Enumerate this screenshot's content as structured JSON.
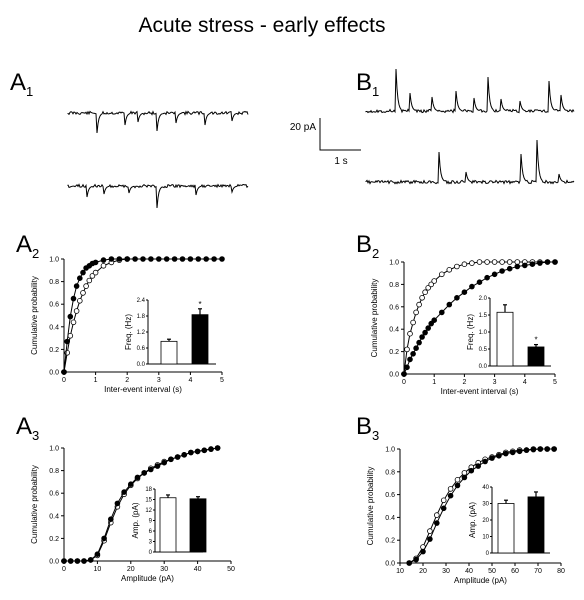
{
  "figure": {
    "title": "Acute stress - early effects",
    "scale_bar": {
      "y_label": "20 pA",
      "x_label": "1 s"
    }
  },
  "panels": {
    "A1": {
      "letter": "A",
      "sub": "1"
    },
    "B1": {
      "letter": "B",
      "sub": "1"
    },
    "A2": {
      "letter": "A",
      "sub": "2"
    },
    "B2": {
      "letter": "B",
      "sub": "2"
    },
    "A3": {
      "letter": "A",
      "sub": "3"
    },
    "B3": {
      "letter": "B",
      "sub": "3"
    }
  },
  "chart_data": [
    {
      "id": "A2",
      "type": "line",
      "xlabel": "Inter-event interval (s)",
      "ylabel": "Cumulative probability",
      "xlim": [
        0,
        5
      ],
      "ylim": [
        0,
        1.0
      ],
      "xticks": [
        "0",
        "1",
        "2",
        "3",
        "4",
        "5"
      ],
      "yticks": [
        "0.0",
        "0.2",
        "0.4",
        "0.6",
        "0.8",
        "1.0"
      ],
      "series": [
        {
          "marker": "filled",
          "x": [
            0.0,
            0.1,
            0.2,
            0.3,
            0.4,
            0.5,
            0.6,
            0.7,
            0.8,
            0.9,
            1.0,
            1.25,
            1.5,
            1.75,
            2.0,
            2.25,
            2.5,
            2.75,
            3.0,
            3.25,
            3.5,
            3.75,
            4.0,
            4.25,
            4.5,
            4.75,
            5.0
          ],
          "y": [
            0.0,
            0.27,
            0.49,
            0.65,
            0.76,
            0.83,
            0.88,
            0.92,
            0.94,
            0.96,
            0.97,
            0.99,
            1.0,
            1.0,
            1.0,
            1.0,
            1.0,
            1.0,
            1.0,
            1.0,
            1.0,
            1.0,
            1.0,
            1.0,
            1.0,
            1.0,
            1.0
          ]
        },
        {
          "marker": "open",
          "x": [
            0.0,
            0.1,
            0.2,
            0.3,
            0.4,
            0.5,
            0.6,
            0.7,
            0.8,
            0.9,
            1.0,
            1.25,
            1.5,
            1.75,
            2.0
          ],
          "y": [
            0.0,
            0.17,
            0.32,
            0.44,
            0.54,
            0.63,
            0.7,
            0.76,
            0.81,
            0.85,
            0.88,
            0.94,
            0.97,
            0.99,
            1.0
          ]
        }
      ],
      "inset": {
        "type": "bar",
        "ylabel": "Freq. (Hz)",
        "ylim": [
          0,
          2.4
        ],
        "yticks": [
          "0.0",
          "0.6",
          "1.2",
          "1.8",
          "2.4"
        ],
        "values": [
          0.85,
          1.85
        ],
        "errors": [
          0.08,
          0.22
        ],
        "fills": [
          "open",
          "filled"
        ],
        "annotations": [
          "",
          "*"
        ]
      }
    },
    {
      "id": "B2",
      "type": "line",
      "xlabel": "Inter-event interval (s)",
      "ylabel": "Cumulative probability",
      "xlim": [
        0,
        5
      ],
      "ylim": [
        0,
        1.0
      ],
      "xticks": [
        "0",
        "1",
        "2",
        "3",
        "4",
        "5"
      ],
      "yticks": [
        "0.0",
        "0.2",
        "0.4",
        "0.6",
        "0.8",
        "1.0"
      ],
      "series": [
        {
          "marker": "open",
          "x": [
            0.0,
            0.1,
            0.2,
            0.3,
            0.4,
            0.5,
            0.6,
            0.7,
            0.8,
            0.9,
            1.0,
            1.25,
            1.5,
            1.75,
            2.0,
            2.25,
            2.5,
            2.75,
            3.0,
            3.25,
            3.5,
            3.75,
            4.0,
            4.25,
            4.5,
            4.75,
            5.0
          ],
          "y": [
            0.0,
            0.22,
            0.36,
            0.46,
            0.55,
            0.62,
            0.68,
            0.73,
            0.77,
            0.8,
            0.83,
            0.89,
            0.93,
            0.96,
            0.98,
            0.99,
            1.0,
            1.0,
            1.0,
            1.0,
            1.0,
            1.0,
            1.0,
            1.0,
            1.0,
            1.0,
            1.0
          ]
        },
        {
          "marker": "filled",
          "x": [
            0.0,
            0.1,
            0.2,
            0.3,
            0.4,
            0.5,
            0.6,
            0.7,
            0.8,
            0.9,
            1.0,
            1.25,
            1.5,
            1.75,
            2.0,
            2.25,
            2.5,
            2.75,
            3.0,
            3.25,
            3.5,
            3.75,
            4.0,
            4.25,
            4.5,
            4.75,
            5.0
          ],
          "y": [
            0.0,
            0.06,
            0.13,
            0.18,
            0.23,
            0.28,
            0.33,
            0.37,
            0.41,
            0.45,
            0.48,
            0.55,
            0.62,
            0.68,
            0.73,
            0.78,
            0.82,
            0.86,
            0.89,
            0.92,
            0.94,
            0.96,
            0.97,
            0.98,
            0.99,
            1.0,
            1.0
          ]
        }
      ],
      "inset": {
        "type": "bar",
        "ylabel": "Freq. (Hz)",
        "ylim": [
          0,
          2.0
        ],
        "yticks": [
          "0.0",
          "0.5",
          "1.0",
          "1.5",
          "2.0"
        ],
        "values": [
          1.58,
          0.56
        ],
        "errors": [
          0.22,
          0.07
        ],
        "fills": [
          "open",
          "filled"
        ],
        "annotations": [
          "",
          "*"
        ]
      }
    },
    {
      "id": "A3",
      "type": "line",
      "xlabel": "Amplitude (pA)",
      "ylabel": "Cumulative probability",
      "xlim": [
        0,
        50
      ],
      "ylim": [
        0,
        1.0
      ],
      "xticks": [
        "0",
        "10",
        "20",
        "30",
        "40",
        "50"
      ],
      "yticks": [
        "0.0",
        "0.2",
        "0.4",
        "0.6",
        "0.8",
        "1.0"
      ],
      "series": [
        {
          "marker": "filled",
          "x": [
            0,
            2,
            4,
            6,
            8,
            10,
            12,
            14,
            16,
            18,
            20,
            22,
            24,
            26,
            28,
            30,
            32,
            34,
            36,
            38,
            40,
            42,
            44,
            46
          ],
          "y": [
            0.0,
            0.0,
            0.0,
            0.0,
            0.01,
            0.06,
            0.2,
            0.37,
            0.51,
            0.61,
            0.68,
            0.74,
            0.78,
            0.81,
            0.84,
            0.87,
            0.9,
            0.92,
            0.94,
            0.96,
            0.97,
            0.98,
            0.99,
            1.0
          ]
        },
        {
          "marker": "open",
          "x": [
            0,
            2,
            4,
            6,
            8,
            10,
            12,
            14,
            16,
            18,
            20,
            22,
            24,
            26,
            28,
            30,
            32,
            34,
            36,
            38,
            40,
            42,
            44,
            46
          ],
          "y": [
            0.0,
            0.0,
            0.0,
            0.0,
            0.01,
            0.05,
            0.18,
            0.34,
            0.48,
            0.59,
            0.67,
            0.73,
            0.78,
            0.82,
            0.85,
            0.88,
            0.9,
            0.92,
            0.94,
            0.96,
            0.97,
            0.98,
            0.99,
            1.0
          ]
        }
      ],
      "inset": {
        "type": "bar",
        "ylabel": "Amp. (pA)",
        "ylim": [
          0,
          18
        ],
        "yticks": [
          "0",
          "3",
          "6",
          "9",
          "12",
          "15",
          "18"
        ],
        "values": [
          15.5,
          15.2
        ],
        "errors": [
          0.8,
          0.6
        ],
        "fills": [
          "open",
          "filled"
        ],
        "annotations": [
          "",
          ""
        ]
      }
    },
    {
      "id": "B3",
      "type": "line",
      "xlabel": "Amplitude (pA)",
      "ylabel": "Cumulative probability",
      "xlim": [
        10,
        80
      ],
      "ylim": [
        0,
        1.0
      ],
      "xticks": [
        "10",
        "20",
        "30",
        "40",
        "50",
        "60",
        "70",
        "80"
      ],
      "yticks": [
        "0.0",
        "0.2",
        "0.4",
        "0.6",
        "0.8",
        "1.0"
      ],
      "series": [
        {
          "marker": "filled",
          "x": [
            14,
            17,
            20,
            23,
            26,
            29,
            32,
            35,
            38,
            41,
            44,
            47,
            50,
            53,
            56,
            59,
            62,
            65,
            68,
            71,
            74,
            77
          ],
          "y": [
            0.0,
            0.03,
            0.1,
            0.21,
            0.35,
            0.48,
            0.59,
            0.68,
            0.75,
            0.81,
            0.85,
            0.89,
            0.92,
            0.94,
            0.96,
            0.97,
            0.98,
            0.99,
            0.995,
            1.0,
            1.0,
            1.0
          ]
        },
        {
          "marker": "open",
          "x": [
            14,
            17,
            20,
            23,
            26,
            29,
            32,
            35,
            38,
            41,
            44,
            47,
            50,
            53,
            56,
            59,
            62,
            65,
            68,
            71,
            74,
            77
          ],
          "y": [
            0.0,
            0.04,
            0.14,
            0.28,
            0.42,
            0.55,
            0.65,
            0.73,
            0.79,
            0.84,
            0.88,
            0.91,
            0.93,
            0.95,
            0.97,
            0.98,
            0.99,
            0.99,
            1.0,
            1.0,
            1.0,
            1.0
          ]
        }
      ],
      "inset": {
        "type": "bar",
        "ylabel": "Amp. (pA)",
        "ylim": [
          0,
          40
        ],
        "yticks": [
          "0",
          "10",
          "20",
          "30",
          "40"
        ],
        "values": [
          30,
          34
        ],
        "errors": [
          2.0,
          3.0
        ],
        "fills": [
          "open",
          "filled"
        ],
        "annotations": [
          "",
          ""
        ]
      }
    }
  ]
}
